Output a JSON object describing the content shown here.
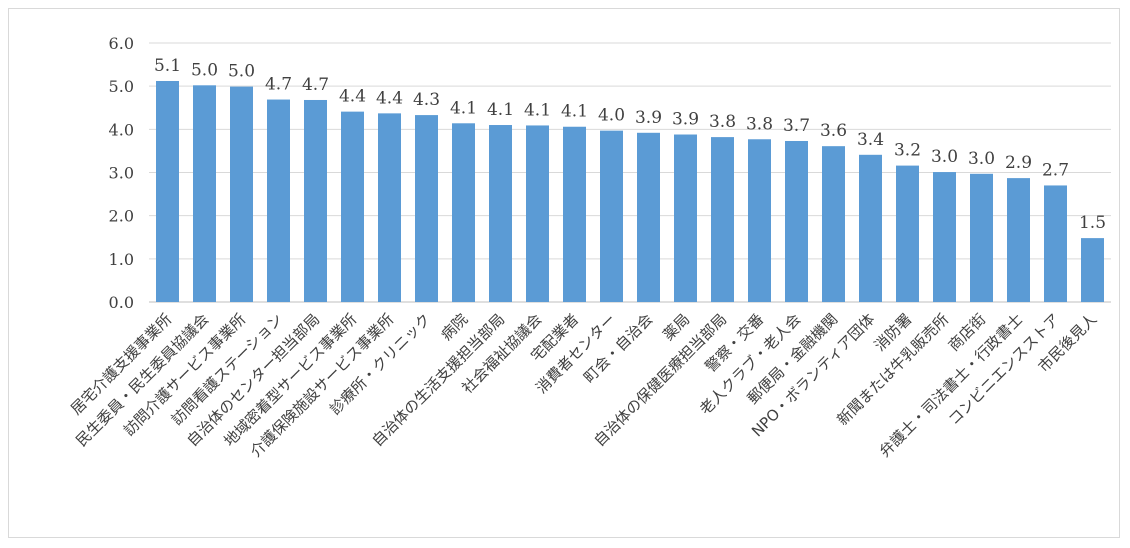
{
  "chart_data": {
    "type": "bar",
    "title": "",
    "xlabel": "",
    "ylabel": "",
    "ylim": [
      0,
      6
    ],
    "yticks": [
      "0.0",
      "1.0",
      "2.0",
      "3.0",
      "4.0",
      "5.0",
      "6.0"
    ],
    "grid": true,
    "legend": "none",
    "bar_color": "#5b9bd5",
    "categories": [
      "居宅介護支援事業所",
      "民生委員・民生委員協議会",
      "訪問介護サービス事業所",
      "訪問看護ステーション",
      "自治体のセンター担当部局",
      "地域密着型サービス事業所",
      "介護保険施設サービス事業所",
      "診療所・クリニック",
      "病院",
      "自治体の生活支援担当部局",
      "社会福祉協議会",
      "宅配業者",
      "消費者センター",
      "町会・自治会",
      "薬局",
      "自治体の保健医療担当部局",
      "警察・交番",
      "老人クラブ・老人会",
      "郵便局・金融機関",
      "NPO・ボランティア団体",
      "消防署",
      "新聞または牛乳販売所",
      "商店街",
      "弁護士・司法書士・行政書士",
      "コンビニエンスストア",
      "市民後見人"
    ],
    "values": [
      5.12,
      5.02,
      4.99,
      4.69,
      4.68,
      4.41,
      4.37,
      4.33,
      4.14,
      4.1,
      4.09,
      4.06,
      3.97,
      3.92,
      3.88,
      3.82,
      3.77,
      3.73,
      3.61,
      3.41,
      3.16,
      3.01,
      2.97,
      2.87,
      2.7,
      1.48
    ],
    "data_labels": [
      "5.1",
      "5.0",
      "5.0",
      "4.7",
      "4.7",
      "4.4",
      "4.4",
      "4.3",
      "4.1",
      "4.1",
      "4.1",
      "4.1",
      "4.0",
      "3.9",
      "3.9",
      "3.8",
      "3.8",
      "3.7",
      "3.6",
      "3.4",
      "3.2",
      "3.0",
      "3.0",
      "2.9",
      "2.7",
      "1.5"
    ]
  }
}
